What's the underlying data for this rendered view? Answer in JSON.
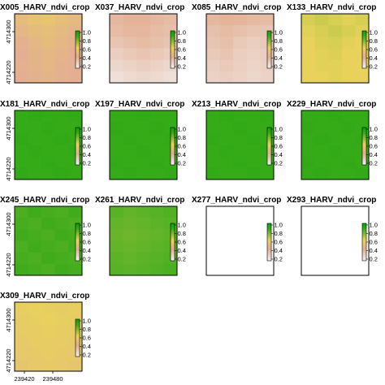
{
  "chart_data": {
    "type": "heatmap",
    "layout": {
      "rows": 4,
      "cols": 4
    },
    "legend_breaks": [
      "1.0",
      "0.8",
      "0.6",
      "0.4",
      "0.2"
    ],
    "colors": {
      "low": "#f2f2f2",
      "mid_low": "#e3ae92",
      "mid": "#e8d25a",
      "high": "#3aab1a",
      "top": "#00a600"
    },
    "panels": [
      {
        "title": "X005_HARV_ndvi_crop",
        "blank": false,
        "grid": [
          [
            0.4,
            0.44,
            0.46,
            0.42,
            0.38
          ],
          [
            0.36,
            0.4,
            0.42,
            0.38,
            0.34
          ],
          [
            0.32,
            0.36,
            0.4,
            0.36,
            0.32
          ],
          [
            0.3,
            0.34,
            0.36,
            0.34,
            0.3
          ],
          [
            0.32,
            0.34,
            0.36,
            0.32,
            0.3
          ],
          [
            0.3,
            0.32,
            0.34,
            0.32,
            0.3
          ]
        ],
        "y_ticks": [
          "4714300",
          "4714220"
        ],
        "x_ticks": []
      },
      {
        "title": "X037_HARV_ndvi_crop",
        "blank": false,
        "grid": [
          [
            0.26,
            0.28,
            0.28,
            0.26,
            0.24
          ],
          [
            0.24,
            0.26,
            0.26,
            0.24,
            0.22
          ],
          [
            0.2,
            0.22,
            0.24,
            0.22,
            0.2
          ],
          [
            0.16,
            0.18,
            0.2,
            0.18,
            0.16
          ],
          [
            0.12,
            0.14,
            0.16,
            0.14,
            0.12
          ],
          [
            0.08,
            0.1,
            0.12,
            0.1,
            0.08
          ]
        ],
        "y_ticks": [],
        "x_ticks": []
      },
      {
        "title": "X085_HARV_ndvi_crop",
        "blank": false,
        "grid": [
          [
            0.26,
            0.28,
            0.27,
            0.25,
            0.24
          ],
          [
            0.22,
            0.24,
            0.22,
            0.2,
            0.2
          ],
          [
            0.2,
            0.22,
            0.18,
            0.16,
            0.18
          ],
          [
            0.18,
            0.2,
            0.16,
            0.14,
            0.16
          ],
          [
            0.16,
            0.18,
            0.15,
            0.13,
            0.15
          ],
          [
            0.14,
            0.16,
            0.14,
            0.12,
            0.14
          ]
        ],
        "y_ticks": [],
        "x_ticks": []
      },
      {
        "title": "X133_HARV_ndvi_crop",
        "blank": false,
        "grid": [
          [
            0.58,
            0.6,
            0.58,
            0.56,
            0.58
          ],
          [
            0.56,
            0.58,
            0.6,
            0.58,
            0.56
          ],
          [
            0.55,
            0.57,
            0.58,
            0.56,
            0.55
          ],
          [
            0.54,
            0.56,
            0.57,
            0.55,
            0.54
          ],
          [
            0.55,
            0.56,
            0.56,
            0.54,
            0.55
          ],
          [
            0.54,
            0.55,
            0.56,
            0.55,
            0.54
          ]
        ],
        "y_ticks": [],
        "x_ticks": []
      },
      {
        "title": "X181_HARV_ndvi_crop",
        "blank": false,
        "grid": [
          [
            0.86,
            0.87,
            0.86,
            0.86,
            0.87
          ],
          [
            0.86,
            0.86,
            0.87,
            0.86,
            0.86
          ],
          [
            0.87,
            0.86,
            0.86,
            0.87,
            0.86
          ],
          [
            0.86,
            0.87,
            0.86,
            0.86,
            0.87
          ],
          [
            0.86,
            0.86,
            0.87,
            0.86,
            0.86
          ],
          [
            0.87,
            0.86,
            0.86,
            0.87,
            0.86
          ]
        ],
        "y_ticks": [
          "4714300",
          "4714220"
        ],
        "x_ticks": []
      },
      {
        "title": "X197_HARV_ndvi_crop",
        "blank": false,
        "grid": [
          [
            0.86,
            0.86,
            0.87,
            0.86,
            0.86
          ],
          [
            0.87,
            0.86,
            0.86,
            0.87,
            0.86
          ],
          [
            0.86,
            0.87,
            0.86,
            0.86,
            0.87
          ],
          [
            0.86,
            0.86,
            0.87,
            0.86,
            0.86
          ],
          [
            0.87,
            0.86,
            0.86,
            0.87,
            0.86
          ],
          [
            0.86,
            0.87,
            0.86,
            0.86,
            0.87
          ]
        ],
        "y_ticks": [],
        "x_ticks": []
      },
      {
        "title": "X213_HARV_ndvi_crop",
        "blank": false,
        "grid": [
          [
            0.86,
            0.87,
            0.86,
            0.86,
            0.87
          ],
          [
            0.86,
            0.86,
            0.87,
            0.86,
            0.86
          ],
          [
            0.87,
            0.86,
            0.86,
            0.87,
            0.86
          ],
          [
            0.86,
            0.87,
            0.86,
            0.86,
            0.87
          ],
          [
            0.86,
            0.86,
            0.87,
            0.86,
            0.86
          ],
          [
            0.87,
            0.86,
            0.86,
            0.87,
            0.86
          ]
        ],
        "y_ticks": [],
        "x_ticks": []
      },
      {
        "title": "X229_HARV_ndvi_crop",
        "blank": false,
        "grid": [
          [
            0.86,
            0.86,
            0.87,
            0.86,
            0.86
          ],
          [
            0.87,
            0.86,
            0.86,
            0.87,
            0.86
          ],
          [
            0.86,
            0.87,
            0.86,
            0.86,
            0.87
          ],
          [
            0.86,
            0.86,
            0.87,
            0.86,
            0.86
          ],
          [
            0.87,
            0.86,
            0.86,
            0.87,
            0.86
          ],
          [
            0.86,
            0.87,
            0.86,
            0.86,
            0.87
          ]
        ],
        "y_ticks": [],
        "x_ticks": []
      },
      {
        "title": "X245_HARV_ndvi_crop",
        "blank": false,
        "grid": [
          [
            0.82,
            0.84,
            0.83,
            0.82,
            0.84
          ],
          [
            0.83,
            0.82,
            0.84,
            0.83,
            0.82
          ],
          [
            0.84,
            0.83,
            0.82,
            0.84,
            0.83
          ],
          [
            0.82,
            0.84,
            0.83,
            0.82,
            0.84
          ],
          [
            0.83,
            0.82,
            0.84,
            0.83,
            0.82
          ],
          [
            0.84,
            0.83,
            0.82,
            0.84,
            0.83
          ]
        ],
        "y_ticks": [
          "4714300",
          "4714220"
        ],
        "x_ticks": []
      },
      {
        "title": "X261_HARV_ndvi_crop",
        "blank": false,
        "grid": [
          [
            0.8,
            0.78,
            0.79,
            0.8,
            0.81
          ],
          [
            0.78,
            0.77,
            0.78,
            0.79,
            0.8
          ],
          [
            0.77,
            0.76,
            0.77,
            0.78,
            0.79
          ],
          [
            0.78,
            0.77,
            0.78,
            0.79,
            0.8
          ],
          [
            0.79,
            0.78,
            0.79,
            0.8,
            0.81
          ],
          [
            0.8,
            0.79,
            0.8,
            0.81,
            0.82
          ]
        ],
        "y_ticks": [],
        "x_ticks": []
      },
      {
        "title": "X277_HARV_ndvi_crop",
        "blank": true,
        "grid": [],
        "y_ticks": [],
        "x_ticks": []
      },
      {
        "title": "X293_HARV_ndvi_crop",
        "blank": true,
        "grid": [],
        "y_ticks": [],
        "x_ticks": []
      },
      {
        "title": "X309_HARV_ndvi_crop",
        "blank": false,
        "grid": [
          [
            0.52,
            0.53,
            0.52,
            0.51,
            0.52
          ],
          [
            0.51,
            0.52,
            0.53,
            0.52,
            0.51
          ],
          [
            0.5,
            0.51,
            0.52,
            0.51,
            0.5
          ],
          [
            0.49,
            0.5,
            0.51,
            0.5,
            0.49
          ],
          [
            0.48,
            0.49,
            0.5,
            0.49,
            0.48
          ],
          [
            0.47,
            0.48,
            0.49,
            0.48,
            0.47
          ]
        ],
        "y_ticks": [
          "4714300",
          "4714220"
        ],
        "x_ticks": [
          "239420",
          "239480"
        ]
      }
    ]
  }
}
